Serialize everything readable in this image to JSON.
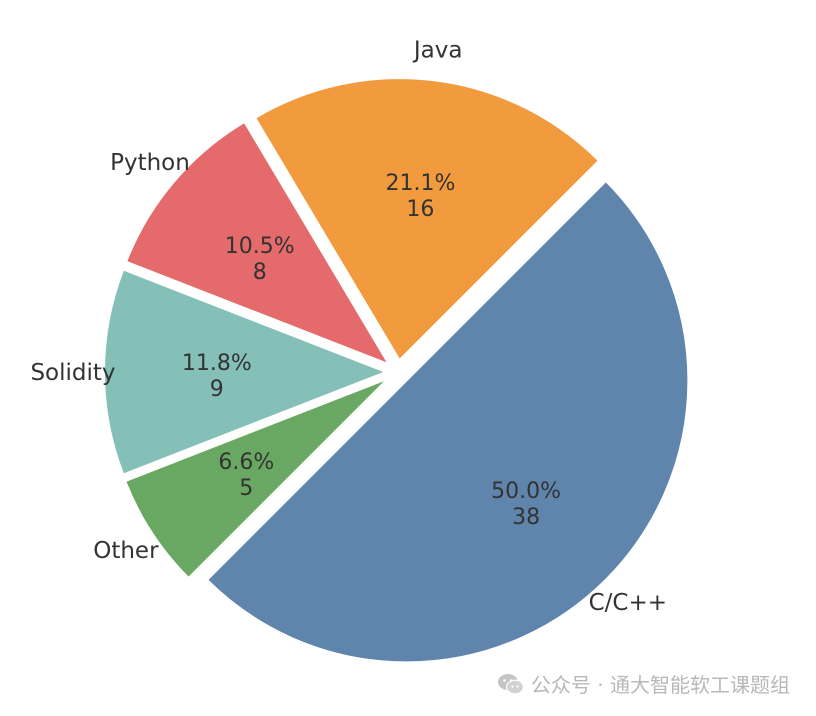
{
  "chart_data": {
    "type": "pie",
    "slices": [
      {
        "label": "C/C++",
        "value": 38,
        "percent": "50.0%",
        "count": "38",
        "color": "#5f85ad"
      },
      {
        "label": "Java",
        "value": 16,
        "percent": "21.1%",
        "count": "16",
        "color": "#f29a3e"
      },
      {
        "label": "Python",
        "value": 8,
        "percent": "10.5%",
        "count": "8",
        "color": "#e46a6b"
      },
      {
        "label": "Solidity",
        "value": 9,
        "percent": "11.8%",
        "count": "9",
        "color": "#84bfb8"
      },
      {
        "label": "Other",
        "value": 5,
        "percent": "6.6%",
        "count": "5",
        "color": "#69a862"
      }
    ],
    "exploded": true
  },
  "watermark": {
    "text": "公众号 · 通大智能软工课题组",
    "icon": "wechat-icon"
  }
}
